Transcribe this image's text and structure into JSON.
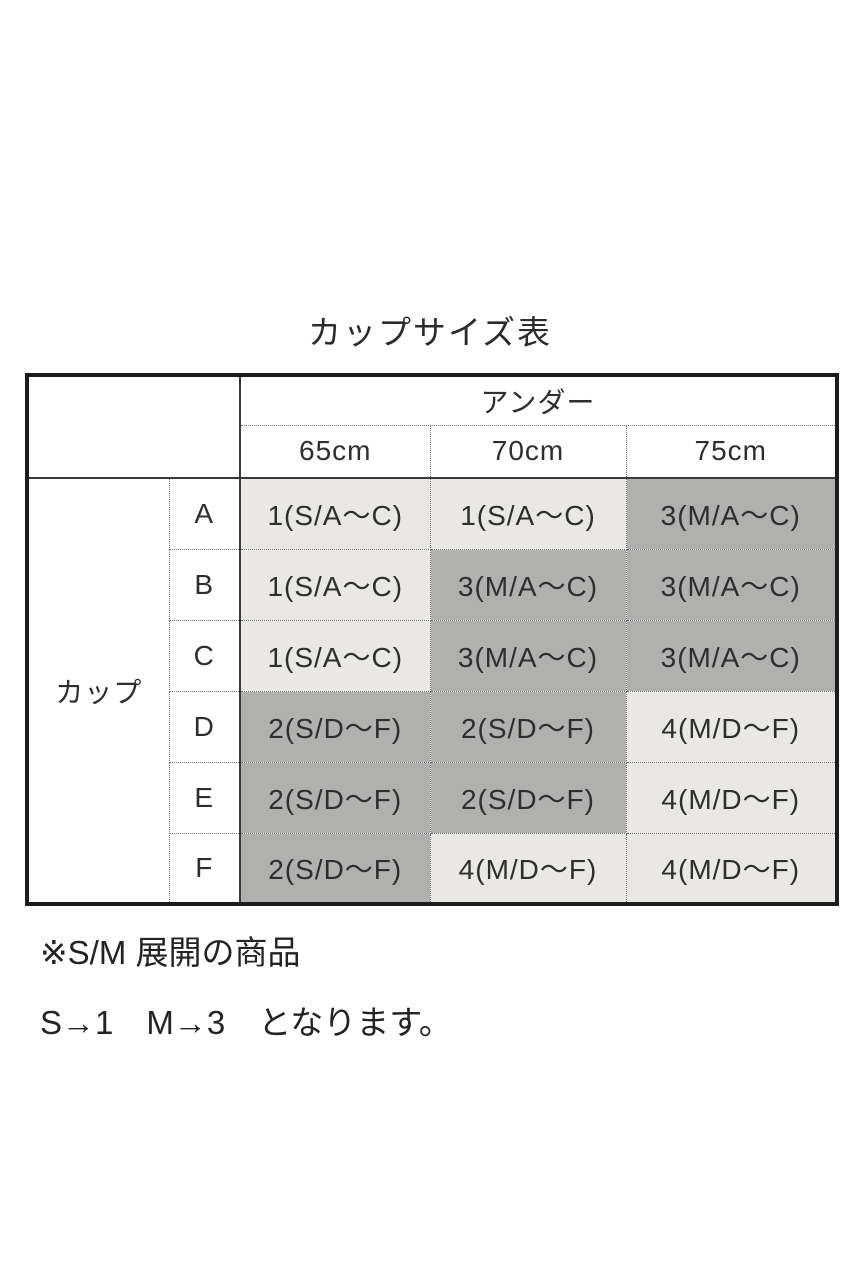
{
  "title": "カップサイズ表",
  "table": {
    "under_header": "アンダー",
    "cup_header": "カップ",
    "columns": [
      "65cm",
      "70cm",
      "75cm"
    ],
    "rows": [
      {
        "cup": "A",
        "cells": [
          {
            "text": "1(S/A～C)",
            "tone": "light"
          },
          {
            "text": "1(S/A～C)",
            "tone": "light"
          },
          {
            "text": "3(M/A～C)",
            "tone": "dark"
          }
        ]
      },
      {
        "cup": "B",
        "cells": [
          {
            "text": "1(S/A～C)",
            "tone": "light"
          },
          {
            "text": "3(M/A～C)",
            "tone": "dark"
          },
          {
            "text": "3(M/A～C)",
            "tone": "dark"
          }
        ]
      },
      {
        "cup": "C",
        "cells": [
          {
            "text": "1(S/A～C)",
            "tone": "light"
          },
          {
            "text": "3(M/A～C)",
            "tone": "dark"
          },
          {
            "text": "3(M/A～C)",
            "tone": "dark"
          }
        ]
      },
      {
        "cup": "D",
        "cells": [
          {
            "text": "2(S/D～F)",
            "tone": "dark"
          },
          {
            "text": "2(S/D～F)",
            "tone": "dark"
          },
          {
            "text": "4(M/D～F)",
            "tone": "light"
          }
        ]
      },
      {
        "cup": "E",
        "cells": [
          {
            "text": "2(S/D～F)",
            "tone": "dark"
          },
          {
            "text": "2(S/D～F)",
            "tone": "dark"
          },
          {
            "text": "4(M/D～F)",
            "tone": "light"
          }
        ]
      },
      {
        "cup": "F",
        "cells": [
          {
            "text": "2(S/D～F)",
            "tone": "dark"
          },
          {
            "text": "4(M/D～F)",
            "tone": "light"
          },
          {
            "text": "4(M/D～F)",
            "tone": "light"
          }
        ]
      }
    ]
  },
  "notes": {
    "line1": "※S/M 展開の商品",
    "line2": "S→1　M→3　となります。"
  },
  "colors": {
    "light_cell": "#e9e8e5",
    "dark_cell": "#b0b0ae",
    "border_dark": "#1c1c1c",
    "text": "#2e2e2e"
  }
}
